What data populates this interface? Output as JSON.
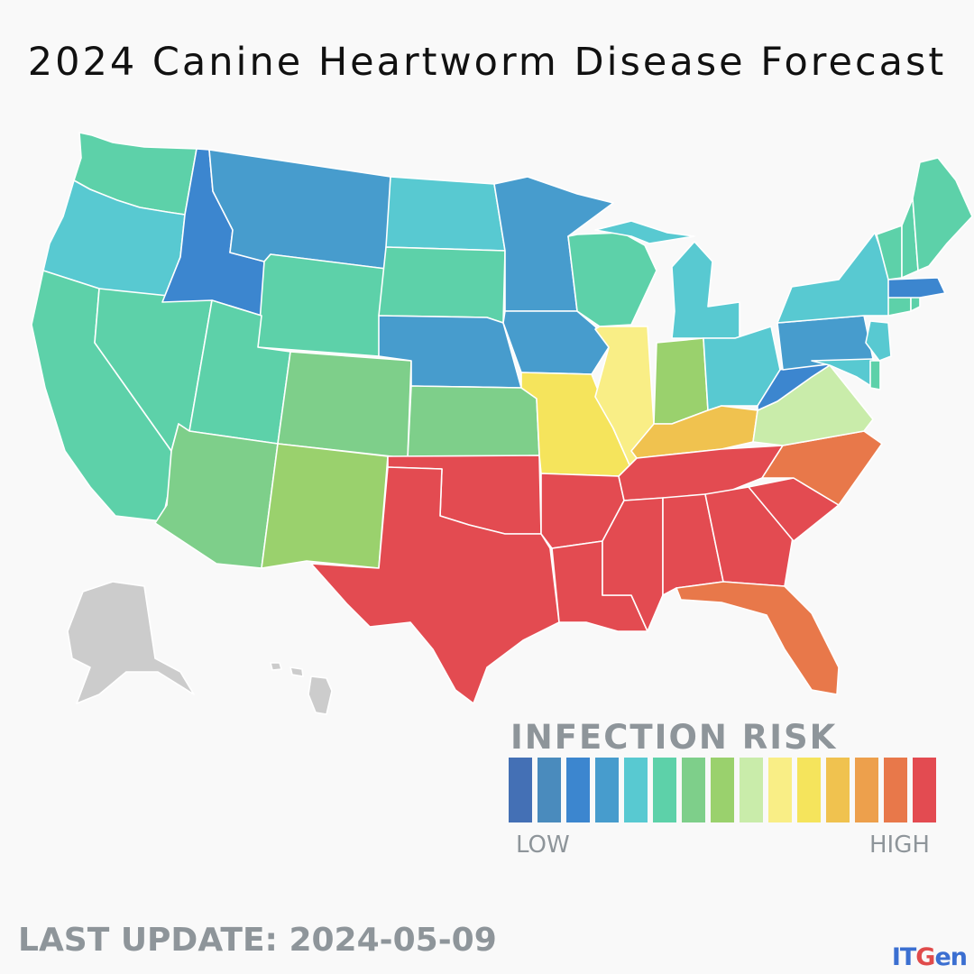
{
  "title": "2024 Canine Heartworm Disease Forecast",
  "legend": {
    "title": "INFECTION RISK",
    "low_label": "LOW",
    "high_label": "HIGH",
    "scale": [
      "#4470b5",
      "#4a8bbd",
      "#3c86cf",
      "#479ccd",
      "#58c9d1",
      "#5dd1a9",
      "#7ecf8a",
      "#9ad16d",
      "#c9ecaa",
      "#f9ee86",
      "#f5e45c",
      "#f0c24f",
      "#eda04c",
      "#e8784a",
      "#e34b51"
    ]
  },
  "last_update": "LAST UPDATE: 2024-05-09",
  "brand": {
    "part1": "IT",
    "part2": "G",
    "part3": "en"
  },
  "regions": [
    {
      "name": "Washington",
      "level": 6
    },
    {
      "name": "Oregon",
      "level": 5
    },
    {
      "name": "California",
      "level": 6
    },
    {
      "name": "Nevada",
      "level": 6
    },
    {
      "name": "Idaho",
      "level": 3
    },
    {
      "name": "Montana",
      "level": 4
    },
    {
      "name": "Wyoming",
      "level": 6
    },
    {
      "name": "Utah",
      "level": 6
    },
    {
      "name": "Arizona",
      "level": 7
    },
    {
      "name": "Colorado",
      "level": 7
    },
    {
      "name": "New Mexico",
      "level": 8
    },
    {
      "name": "North Dakota",
      "level": 5
    },
    {
      "name": "South Dakota",
      "level": 6
    },
    {
      "name": "Nebraska",
      "level": 4
    },
    {
      "name": "Kansas",
      "level": 7
    },
    {
      "name": "Oklahoma",
      "level": 15
    },
    {
      "name": "Texas",
      "level": 15
    },
    {
      "name": "Minnesota",
      "level": 4
    },
    {
      "name": "Iowa",
      "level": 4
    },
    {
      "name": "Missouri",
      "level": 11
    },
    {
      "name": "Arkansas",
      "level": 15
    },
    {
      "name": "Louisiana",
      "level": 15
    },
    {
      "name": "Wisconsin",
      "level": 6
    },
    {
      "name": "Illinois",
      "level": 10
    },
    {
      "name": "Michigan",
      "level": 5
    },
    {
      "name": "Indiana",
      "level": 8
    },
    {
      "name": "Ohio",
      "level": 5
    },
    {
      "name": "Kentucky",
      "level": 12
    },
    {
      "name": "Tennessee",
      "level": 15
    },
    {
      "name": "Mississippi",
      "level": 15
    },
    {
      "name": "Alabama",
      "level": 15
    },
    {
      "name": "Georgia",
      "level": 15
    },
    {
      "name": "Florida",
      "level": 14
    },
    {
      "name": "South Carolina",
      "level": 15
    },
    {
      "name": "North Carolina",
      "level": 14
    },
    {
      "name": "Virginia",
      "level": 9
    },
    {
      "name": "West Virginia",
      "level": 3
    },
    {
      "name": "Pennsylvania",
      "level": 4
    },
    {
      "name": "New York",
      "level": 5
    },
    {
      "name": "Maryland",
      "level": 5
    },
    {
      "name": "Delaware",
      "level": 6
    },
    {
      "name": "New Jersey",
      "level": 5
    },
    {
      "name": "Connecticut",
      "level": 6
    },
    {
      "name": "Rhode Island",
      "level": 6
    },
    {
      "name": "Massachusetts",
      "level": 3
    },
    {
      "name": "Vermont",
      "level": 6
    },
    {
      "name": "New Hampshire",
      "level": 6
    },
    {
      "name": "Maine",
      "level": 6
    },
    {
      "name": "Alaska",
      "level": 0
    },
    {
      "name": "Hawaii",
      "level": 0
    }
  ],
  "no_data_color": "#cccccc"
}
